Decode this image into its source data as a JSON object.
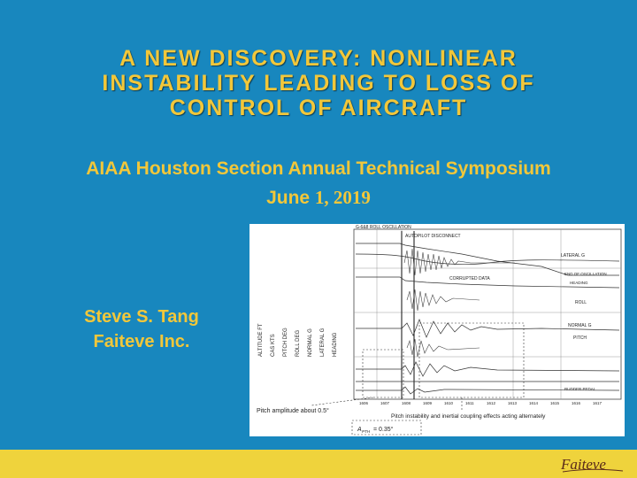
{
  "slide": {
    "title_lines": [
      "A NEW DISCOVERY: NONLINEAR",
      "INSTABILITY LEADING TO LOSS OF",
      "CONTROL OF AIRCRAFT"
    ],
    "subtitle": "AIAA Houston Section Annual Technical Symposium",
    "date_month": "June",
    "date_numbers": "1, 2019",
    "author_name": "Steve S. Tang",
    "author_org": "Faiteve Inc.",
    "colors": {
      "background": "#1887be",
      "text": "#f2c73a",
      "footer": "#efd33c"
    }
  },
  "figure": {
    "header": "G-6&8 ROLL OSCILLATION",
    "autopilot_label": "AUTOPILOT DISCONNECT",
    "lateral_g_label": "LATERAL G",
    "end_label": "END OF OSCILLATION",
    "heading_label": "HEADING",
    "corrupted_label": "CORRUPTED DATA",
    "roll_label": "ROLL",
    "normal_g_label": "NORMAL G",
    "pitch_label": "PITCH",
    "rudder_label": "RUDDER PEDAL",
    "left_axis_labels": [
      "ALTITUDE FT",
      "CAS KTS",
      "PITCH DEG",
      "ROLL DEG",
      "NORMAL G",
      "LATERAL G",
      "HEADING"
    ],
    "time_ticks": [
      "1606",
      "1607",
      "1608",
      "1609",
      "1610",
      "1611",
      "1612",
      "1613",
      "1614",
      "1615",
      "1616",
      "1617"
    ],
    "note_pitch_amplitude": "Pitch amplitude about 0.5°",
    "note_coupling": "Pitch instability and inertial coupling effects acting alternately",
    "formula_text": "A",
    "formula_sub": "PTH",
    "formula_value": " = 0.35°"
  },
  "logo_text": "Faiteve"
}
